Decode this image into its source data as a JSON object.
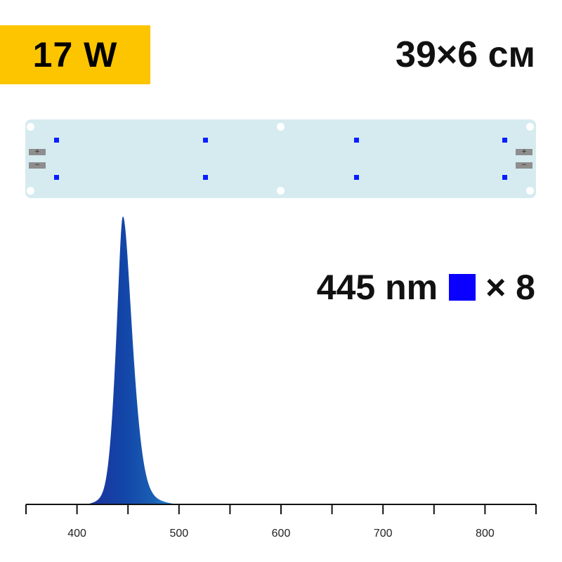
{
  "power": "17 W",
  "dimensions": "39×6 см",
  "led_spec": {
    "wavelength": "445 nm",
    "multiplier": "× 8",
    "swatch_color": "#0a00ff"
  },
  "board": {
    "terminal_plus": "+",
    "terminal_minus": "−",
    "led_color": "#0a1eff",
    "led_count": 8
  },
  "chart_data": {
    "type": "area",
    "x_ticks": [
      400,
      500,
      600,
      700,
      800
    ],
    "xlim": [
      350,
      850
    ],
    "peak_nm": 445,
    "series": [
      {
        "values": [
          [
            405,
            0.0
          ],
          [
            420,
            0.02
          ],
          [
            430,
            0.1
          ],
          [
            435,
            0.25
          ],
          [
            440,
            0.6
          ],
          [
            445,
            1.0
          ],
          [
            450,
            0.6
          ],
          [
            455,
            0.35
          ],
          [
            460,
            0.2
          ],
          [
            470,
            0.08
          ],
          [
            480,
            0.03
          ],
          [
            495,
            0.0
          ]
        ]
      }
    ]
  }
}
